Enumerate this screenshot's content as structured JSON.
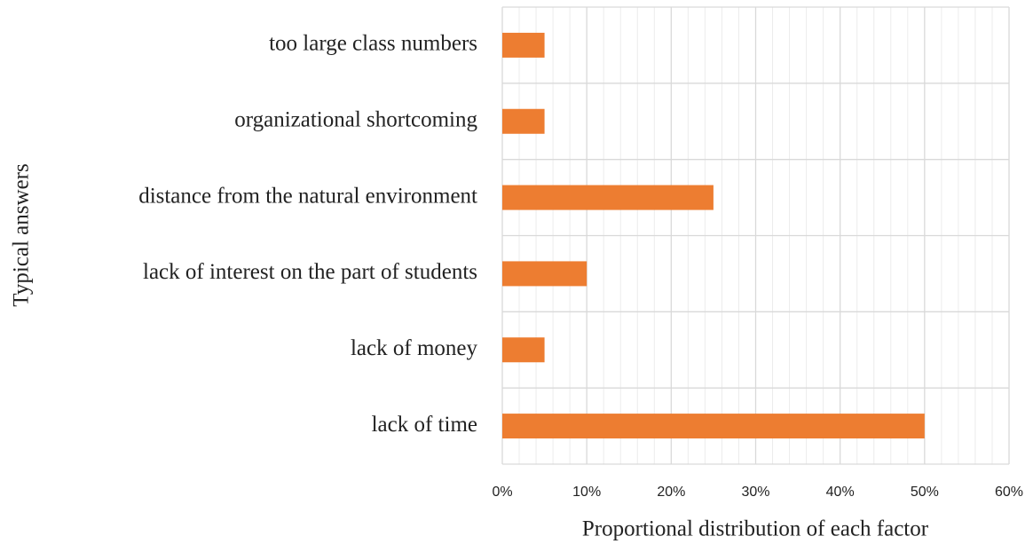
{
  "chart_data": {
    "type": "bar",
    "orientation": "horizontal",
    "y_label": "Typical answers",
    "x_label": "Proportional distribution of each factor",
    "categories": [
      "lack of time",
      "lack of money",
      "lack of interest on the part of students",
      "distance from the natural environment",
      "organizational shortcoming",
      "too large class numbers"
    ],
    "values": [
      50,
      5,
      10,
      25,
      5,
      5
    ],
    "color": "#ed7d31",
    "xlim": [
      0,
      60
    ],
    "xticks": [
      {
        "value": 0,
        "label": "0%"
      },
      {
        "value": 10,
        "label": "10%"
      },
      {
        "value": 20,
        "label": "20%"
      },
      {
        "value": 30,
        "label": "30%"
      },
      {
        "value": 40,
        "label": "40%"
      },
      {
        "value": 50,
        "label": "50%"
      },
      {
        "value": 60,
        "label": "60%"
      }
    ],
    "grid": true,
    "minor_grid": true
  }
}
